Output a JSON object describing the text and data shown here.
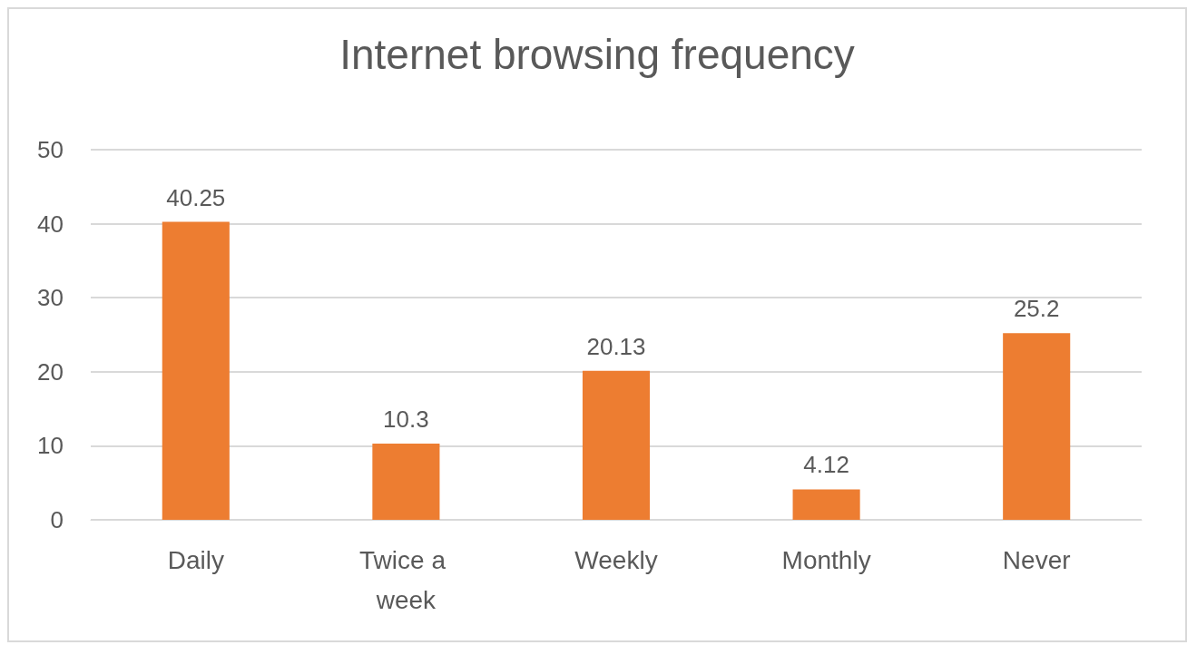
{
  "chart_data": {
    "type": "bar",
    "title": "Internet browsing frequency",
    "categories": [
      "Daily",
      "Twice a week",
      "Weekly",
      "Monthly",
      "Never"
    ],
    "values": [
      40.25,
      10.3,
      20.13,
      4.12,
      25.2
    ],
    "color": "#ed7d31",
    "ylim": [
      0,
      50
    ],
    "yticks": [
      0,
      10,
      20,
      30,
      40,
      50
    ],
    "grid": "y",
    "data_labels": true
  }
}
